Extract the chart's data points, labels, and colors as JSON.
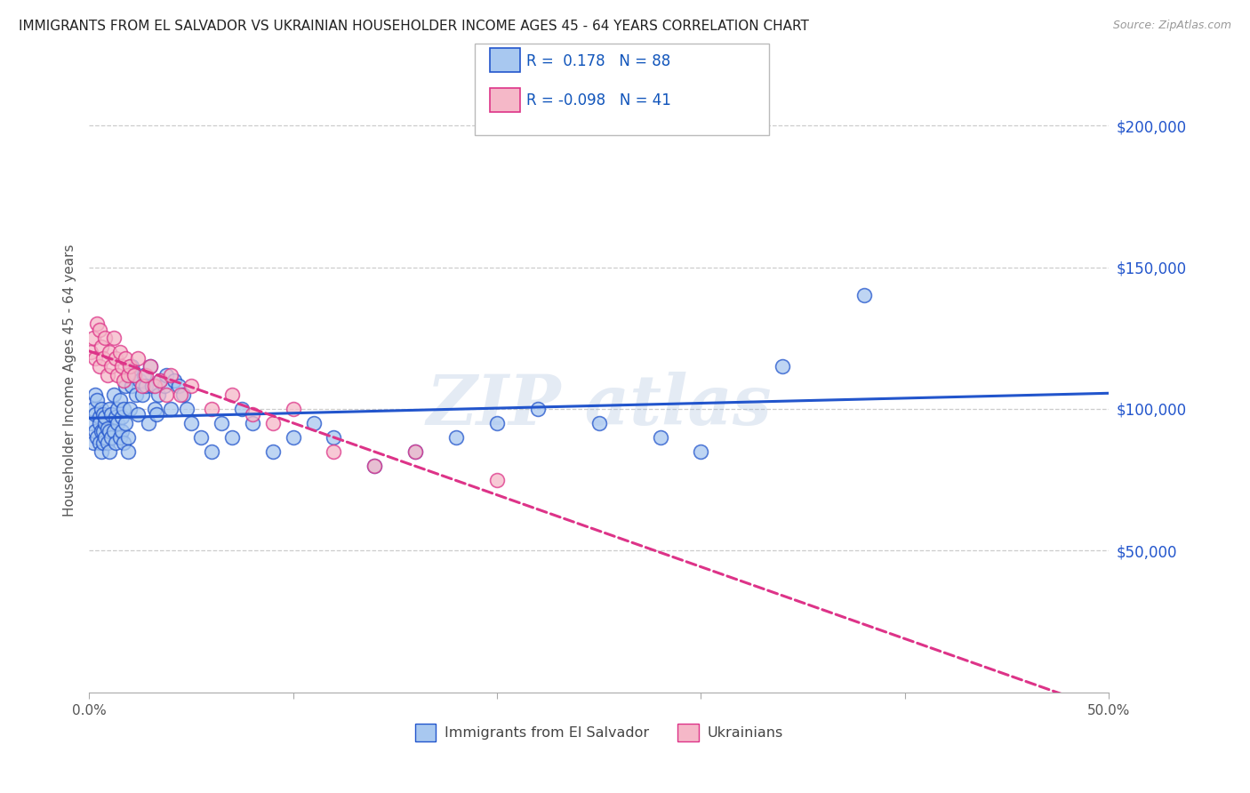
{
  "title": "IMMIGRANTS FROM EL SALVADOR VS UKRAINIAN HOUSEHOLDER INCOME AGES 45 - 64 YEARS CORRELATION CHART",
  "source": "Source: ZipAtlas.com",
  "ylabel": "Householder Income Ages 45 - 64 years",
  "r_salvador": 0.178,
  "n_salvador": 88,
  "r_ukrainian": -0.098,
  "n_ukrainian": 41,
  "xlim": [
    0.0,
    0.5
  ],
  "ylim": [
    0,
    220000
  ],
  "xtick_positions": [
    0.0,
    0.1,
    0.2,
    0.3,
    0.4,
    0.5
  ],
  "xticklabels_ends": {
    "0.0": "0.0%",
    "0.5": "50.0%"
  },
  "yticks_right": [
    50000,
    100000,
    150000,
    200000
  ],
  "ytick_labels_right": [
    "$50,000",
    "$100,000",
    "$150,000",
    "$200,000"
  ],
  "color_salvador": "#A8C8F0",
  "color_ukrainian": "#F5B8C8",
  "color_line_salvador": "#2255CC",
  "color_line_ukrainian": "#DD3388",
  "watermark_text": "ZIP atlas",
  "legend_label_salvador": "Immigrants from El Salvador",
  "legend_label_ukrainian": "Ukrainians",
  "sal_x": [
    0.001,
    0.002,
    0.002,
    0.003,
    0.003,
    0.003,
    0.004,
    0.004,
    0.005,
    0.005,
    0.005,
    0.006,
    0.006,
    0.006,
    0.007,
    0.007,
    0.007,
    0.008,
    0.008,
    0.008,
    0.009,
    0.009,
    0.01,
    0.01,
    0.01,
    0.011,
    0.011,
    0.012,
    0.012,
    0.013,
    0.013,
    0.014,
    0.014,
    0.015,
    0.015,
    0.016,
    0.016,
    0.017,
    0.017,
    0.018,
    0.018,
    0.019,
    0.019,
    0.02,
    0.021,
    0.021,
    0.022,
    0.023,
    0.024,
    0.025,
    0.026,
    0.027,
    0.028,
    0.029,
    0.03,
    0.031,
    0.032,
    0.033,
    0.034,
    0.035,
    0.037,
    0.038,
    0.04,
    0.042,
    0.044,
    0.046,
    0.048,
    0.05,
    0.055,
    0.06,
    0.065,
    0.07,
    0.075,
    0.08,
    0.09,
    0.1,
    0.11,
    0.12,
    0.14,
    0.16,
    0.18,
    0.2,
    0.22,
    0.25,
    0.28,
    0.3,
    0.34,
    0.38
  ],
  "sal_y": [
    95000,
    100000,
    88000,
    105000,
    92000,
    98000,
    103000,
    90000,
    97000,
    88000,
    95000,
    100000,
    92000,
    85000,
    98000,
    92000,
    88000,
    95000,
    90000,
    97000,
    88000,
    93000,
    100000,
    92000,
    85000,
    98000,
    90000,
    105000,
    92000,
    97000,
    88000,
    100000,
    95000,
    90000,
    103000,
    92000,
    97000,
    88000,
    100000,
    95000,
    108000,
    90000,
    85000,
    100000,
    115000,
    108000,
    112000,
    105000,
    98000,
    110000,
    105000,
    112000,
    108000,
    95000,
    115000,
    108000,
    100000,
    98000,
    105000,
    110000,
    108000,
    112000,
    100000,
    110000,
    108000,
    105000,
    100000,
    95000,
    90000,
    85000,
    95000,
    90000,
    100000,
    95000,
    85000,
    90000,
    95000,
    90000,
    80000,
    85000,
    90000,
    95000,
    100000,
    95000,
    90000,
    85000,
    115000,
    140000
  ],
  "ukr_x": [
    0.001,
    0.002,
    0.003,
    0.004,
    0.005,
    0.005,
    0.006,
    0.007,
    0.008,
    0.009,
    0.01,
    0.011,
    0.012,
    0.013,
    0.014,
    0.015,
    0.016,
    0.017,
    0.018,
    0.019,
    0.02,
    0.022,
    0.024,
    0.026,
    0.028,
    0.03,
    0.032,
    0.035,
    0.038,
    0.04,
    0.045,
    0.05,
    0.06,
    0.07,
    0.08,
    0.09,
    0.1,
    0.12,
    0.14,
    0.16,
    0.2
  ],
  "ukr_y": [
    120000,
    125000,
    118000,
    130000,
    115000,
    128000,
    122000,
    118000,
    125000,
    112000,
    120000,
    115000,
    125000,
    118000,
    112000,
    120000,
    115000,
    110000,
    118000,
    112000,
    115000,
    112000,
    118000,
    108000,
    112000,
    115000,
    108000,
    110000,
    105000,
    112000,
    105000,
    108000,
    100000,
    105000,
    98000,
    95000,
    100000,
    85000,
    80000,
    85000,
    75000
  ]
}
